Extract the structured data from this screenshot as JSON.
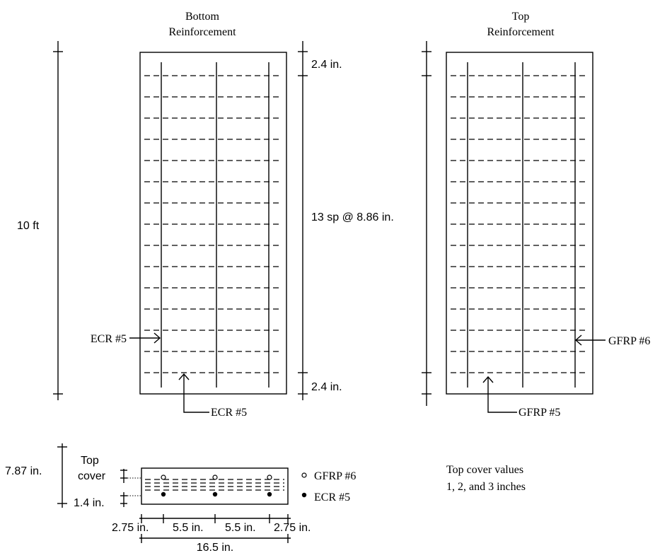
{
  "panels": {
    "bottom": {
      "title_line1": "Bottom",
      "title_line2": "Reinforcement",
      "longitudinal_bar": "ECR #5",
      "transverse_bar": "ECR #5",
      "longitudinal_bar_count": 3,
      "transverse_bar_count": 15
    },
    "top": {
      "title_line1": "Top",
      "title_line2": "Reinforcement",
      "longitudinal_bar": "GFRP #6",
      "transverse_bar": "GFRP #5",
      "longitudinal_bar_count": 3,
      "transverse_bar_count": 15
    }
  },
  "dimensions": {
    "length": "10 ft",
    "end_spacing_top": "2.4 in.",
    "end_spacing_bottom": "2.4 in.",
    "middle_spacing": "13 sp @ 8.86 in."
  },
  "section": {
    "top_cover_line1": "Top",
    "top_cover_line2": "cover",
    "depth": "7.87 in.",
    "bottom_cover": "1.4 in.",
    "spacings": [
      "2.75 in.",
      "5.5 in.",
      "5.5 in.",
      "2.75 in."
    ],
    "width": "16.5 in.",
    "legend": [
      {
        "symbol": "open-circle",
        "label": "GFRP #6"
      },
      {
        "symbol": "filled-circle",
        "label": "ECR #5"
      }
    ]
  },
  "note": {
    "line1": "Top cover values",
    "line2": "1, 2, and 3 inches"
  }
}
